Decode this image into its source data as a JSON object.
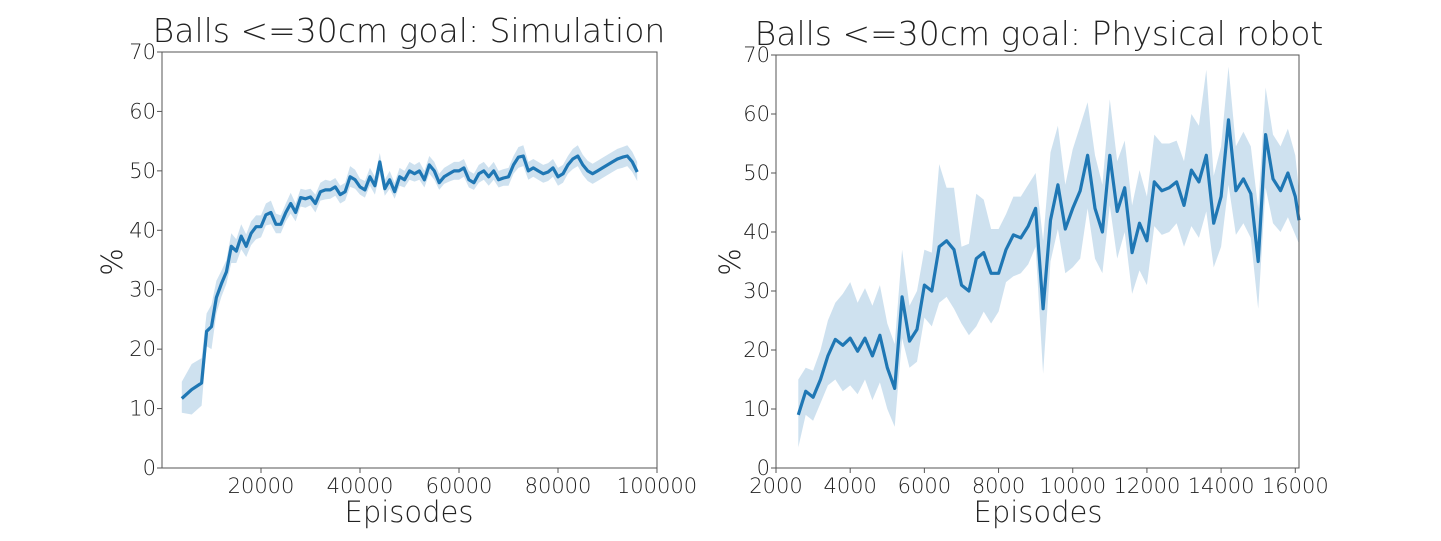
{
  "chart_data": [
    {
      "type": "line",
      "title": "Balls <=30cm goal: Simulation",
      "xlabel": "Episodes",
      "ylabel": "%",
      "xlim": [
        0,
        100000
      ],
      "ylim": [
        0,
        70
      ],
      "xticks": [
        20000,
        40000,
        60000,
        80000,
        100000
      ],
      "yticks": [
        0,
        10,
        20,
        30,
        40,
        50,
        60,
        70
      ],
      "grid": false,
      "line_color": "#1f77b4",
      "band_color": "#1f77b4",
      "series": [
        {
          "x": [
            4000,
            6000,
            8000,
            9000,
            10000,
            11000,
            12000,
            13000,
            14000,
            15000,
            16000,
            17000,
            18000,
            19000,
            20000,
            21000,
            22000,
            23000,
            24000,
            25000,
            26000,
            27000,
            28000,
            29000,
            30000,
            31000,
            32000,
            33000,
            34000,
            35000,
            36000,
            37000,
            38000,
            39000,
            40000,
            41000,
            42000,
            43000,
            44000,
            45000,
            46000,
            47000,
            48000,
            49000,
            50000,
            51000,
            52000,
            53000,
            54000,
            55000,
            56000,
            57000,
            58000,
            59000,
            60000,
            61000,
            62000,
            63000,
            64000,
            65000,
            66000,
            67000,
            68000,
            69000,
            70000,
            71000,
            72000,
            73000,
            74000,
            75000,
            76000,
            77000,
            78000,
            79000,
            80000,
            81000,
            82000,
            83000,
            84000,
            85000,
            86000,
            87000,
            88000,
            89000,
            90000,
            91000,
            92000,
            93000,
            94000,
            95000,
            96000
          ],
          "y": [
            11.7,
            13.2,
            14.3,
            23.0,
            23.8,
            28.7,
            31.0,
            33.0,
            37.3,
            36.5,
            39.0,
            37.3,
            39.5,
            40.6,
            40.6,
            42.6,
            43.0,
            41.0,
            41.0,
            43.0,
            44.5,
            43.0,
            45.5,
            45.3,
            45.6,
            44.5,
            46.5,
            46.8,
            46.8,
            47.3,
            46.0,
            46.5,
            49.0,
            48.5,
            47.3,
            46.8,
            49.0,
            47.5,
            51.5,
            47.0,
            48.5,
            46.5,
            49.0,
            48.5,
            50.0,
            49.5,
            50.0,
            48.5,
            51.0,
            50.0,
            48.0,
            49.0,
            49.5,
            50.0,
            50.0,
            50.5,
            48.5,
            48.0,
            49.5,
            50.0,
            49.0,
            50.0,
            48.5,
            48.8,
            49.0,
            51.0,
            52.3,
            52.5,
            50.0,
            50.5,
            50.0,
            49.5,
            49.8,
            50.5,
            49.0,
            49.5,
            51.0,
            52.0,
            52.5,
            51.0,
            50.0,
            49.5,
            50.0,
            50.5,
            51.0,
            51.5,
            52.0,
            52.3,
            52.5,
            51.5,
            49.8
          ],
          "y_low": [
            9.3,
            9.0,
            10.5,
            20.5,
            20.0,
            26.0,
            28.8,
            31.0,
            34.5,
            34.5,
            36.8,
            35.5,
            37.5,
            38.5,
            38.8,
            40.8,
            41.0,
            39.5,
            39.5,
            41.5,
            42.8,
            41.5,
            44.0,
            43.8,
            44.2,
            43.0,
            45.0,
            45.2,
            45.3,
            45.8,
            44.5,
            45.0,
            47.3,
            47.0,
            46.0,
            45.5,
            47.5,
            46.0,
            49.5,
            45.8,
            47.0,
            45.3,
            47.5,
            47.2,
            48.5,
            48.2,
            48.5,
            47.2,
            49.5,
            48.5,
            46.8,
            47.8,
            48.2,
            48.5,
            48.5,
            49.0,
            47.2,
            46.8,
            48.0,
            48.5,
            47.5,
            48.5,
            47.2,
            47.5,
            47.5,
            49.5,
            50.5,
            50.8,
            48.5,
            49.0,
            48.5,
            48.0,
            48.3,
            49.0,
            47.5,
            48.0,
            49.5,
            50.3,
            50.8,
            49.3,
            48.3,
            47.8,
            48.3,
            48.8,
            49.3,
            49.8,
            50.3,
            50.5,
            50.8,
            49.8,
            48.3
          ],
          "y_high": [
            14.5,
            17.5,
            18.5,
            26.0,
            27.5,
            31.5,
            33.2,
            35.0,
            39.5,
            38.5,
            41.0,
            39.3,
            41.5,
            42.5,
            42.5,
            44.5,
            45.0,
            42.8,
            42.5,
            44.5,
            46.3,
            44.5,
            47.0,
            46.8,
            47.0,
            46.0,
            48.0,
            48.5,
            48.3,
            48.8,
            47.5,
            48.0,
            50.8,
            50.2,
            48.7,
            48.3,
            50.5,
            49.0,
            53.0,
            48.5,
            50.0,
            48.0,
            50.5,
            50.0,
            51.5,
            51.0,
            51.5,
            50.0,
            52.5,
            51.5,
            49.5,
            50.5,
            51.0,
            51.5,
            51.5,
            52.0,
            50.0,
            49.5,
            51.0,
            51.5,
            50.5,
            51.5,
            50.0,
            50.3,
            50.5,
            52.5,
            54.0,
            54.3,
            51.5,
            52.0,
            51.5,
            51.0,
            51.3,
            52.0,
            50.5,
            51.0,
            52.5,
            53.7,
            54.3,
            52.7,
            51.7,
            51.2,
            51.7,
            52.2,
            52.7,
            53.2,
            53.7,
            54.0,
            54.3,
            53.2,
            51.5
          ]
        }
      ]
    },
    {
      "type": "line",
      "title": "Balls <=30cm goal: Physical robot",
      "xlabel": "Episodes",
      "ylabel": "%",
      "xlim": [
        2000,
        16100
      ],
      "ylim": [
        0,
        70
      ],
      "xticks": [
        2000,
        4000,
        6000,
        8000,
        10000,
        12000,
        14000,
        16000
      ],
      "yticks": [
        0,
        10,
        20,
        30,
        40,
        50,
        60,
        70
      ],
      "grid": false,
      "line_color": "#1f77b4",
      "band_color": "#1f77b4",
      "series": [
        {
          "x": [
            2600,
            2800,
            3000,
            3200,
            3400,
            3600,
            3800,
            4000,
            4200,
            4400,
            4600,
            4800,
            5000,
            5200,
            5400,
            5600,
            5800,
            6000,
            6200,
            6400,
            6600,
            6800,
            7000,
            7200,
            7400,
            7600,
            7800,
            8000,
            8200,
            8400,
            8600,
            8800,
            9000,
            9200,
            9400,
            9600,
            9800,
            10000,
            10200,
            10400,
            10600,
            10800,
            11000,
            11200,
            11400,
            11600,
            11800,
            12000,
            12200,
            12400,
            12600,
            12800,
            13000,
            13200,
            13400,
            13600,
            13800,
            14000,
            14200,
            14400,
            14600,
            14800,
            15000,
            15200,
            15400,
            15600,
            15800,
            16000,
            16100
          ],
          "y": [
            9.0,
            13.0,
            12.0,
            15.0,
            19.0,
            21.8,
            20.8,
            22.0,
            19.8,
            22.0,
            19.0,
            22.5,
            17.0,
            13.5,
            29.0,
            21.5,
            23.5,
            31.0,
            30.0,
            37.5,
            38.5,
            37.0,
            31.0,
            30.0,
            35.5,
            36.5,
            33.0,
            33.0,
            37.0,
            39.5,
            39.0,
            41.0,
            44.0,
            27.0,
            42.0,
            48.0,
            40.5,
            44.0,
            47.0,
            53.0,
            44.0,
            40.0,
            53.0,
            43.5,
            47.5,
            36.5,
            41.5,
            38.5,
            48.5,
            47.0,
            47.5,
            48.5,
            44.5,
            50.5,
            48.5,
            53.0,
            41.5,
            46.0,
            59.0,
            47.0,
            49.0,
            46.5,
            35.0,
            56.5,
            49.0,
            47.0,
            50.0,
            46.0,
            42.0
          ],
          "y_low": [
            3.5,
            9.0,
            8.0,
            11.0,
            14.0,
            15.0,
            13.0,
            14.0,
            12.5,
            15.0,
            11.5,
            14.5,
            10.0,
            7.0,
            22.0,
            17.0,
            18.0,
            25.5,
            24.0,
            28.0,
            29.0,
            27.0,
            24.5,
            22.5,
            24.0,
            26.5,
            24.5,
            26.5,
            31.5,
            32.5,
            33.0,
            34.5,
            37.5,
            16.0,
            35.0,
            40.5,
            33.0,
            34.0,
            35.5,
            44.0,
            35.5,
            33.0,
            44.5,
            35.5,
            40.0,
            29.5,
            33.5,
            31.0,
            41.0,
            39.5,
            40.0,
            41.5,
            37.5,
            41.0,
            39.0,
            43.5,
            34.0,
            37.5,
            48.0,
            39.5,
            41.5,
            39.0,
            27.0,
            47.5,
            41.5,
            40.0,
            42.5,
            39.5,
            38.0
          ],
          "y_high": [
            15.0,
            17.0,
            16.5,
            20.0,
            25.0,
            28.0,
            29.5,
            31.5,
            28.0,
            30.5,
            27.5,
            31.0,
            24.5,
            21.0,
            37.0,
            27.5,
            30.0,
            37.0,
            36.5,
            51.5,
            47.5,
            47.5,
            37.5,
            38.0,
            46.5,
            45.5,
            40.5,
            40.5,
            43.0,
            46.0,
            46.0,
            48.0,
            50.0,
            38.5,
            53.5,
            58.0,
            48.0,
            54.0,
            58.0,
            62.0,
            53.0,
            48.0,
            62.5,
            52.0,
            55.5,
            44.5,
            50.5,
            46.0,
            56.5,
            55.0,
            55.0,
            55.5,
            52.0,
            60.0,
            58.0,
            67.5,
            49.5,
            54.5,
            68.0,
            54.5,
            57.0,
            54.5,
            44.0,
            64.5,
            56.5,
            54.5,
            57.5,
            53.0,
            47.0
          ]
        }
      ]
    }
  ]
}
